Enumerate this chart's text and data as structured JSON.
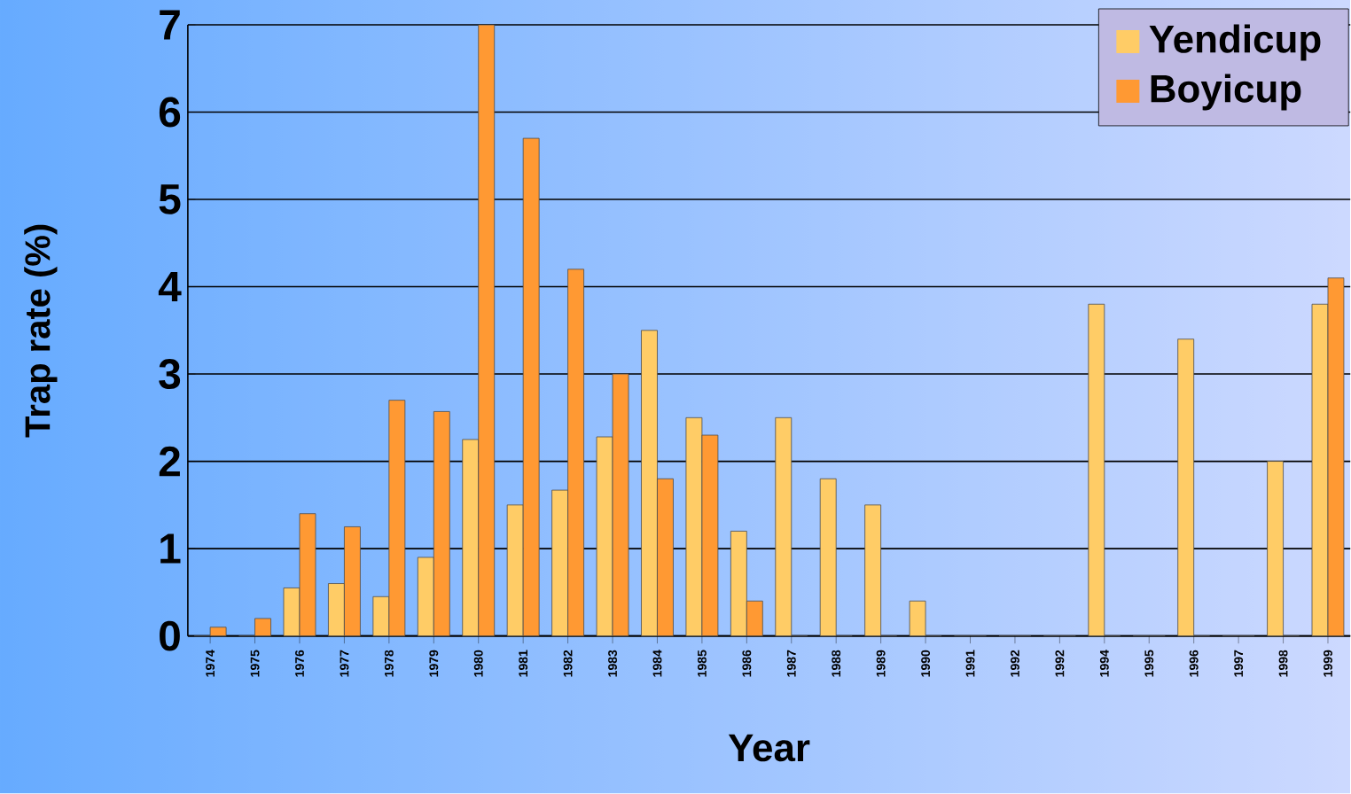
{
  "chart_data": {
    "type": "bar",
    "xlabel": "Year",
    "ylabel": "Trap rate (%)",
    "categories": [
      "1974",
      "1975",
      "1976",
      "1977",
      "1978",
      "1979",
      "1980",
      "1981",
      "1982",
      "1983",
      "1984",
      "1985",
      "1986",
      "1987",
      "1988",
      "1989",
      "1990",
      "1991",
      "1992",
      "1992",
      "1994",
      "1995",
      "1996",
      "1997",
      "1998",
      "1999"
    ],
    "series": [
      {
        "name": "Yendicup",
        "color": "#ffcc66",
        "values": [
          0,
          0,
          0.55,
          0.6,
          0.45,
          0.9,
          2.25,
          1.5,
          1.67,
          2.28,
          3.5,
          2.5,
          1.2,
          2.5,
          1.8,
          1.5,
          0.4,
          0,
          0,
          0,
          3.8,
          0,
          3.4,
          0,
          2.0,
          3.8
        ]
      },
      {
        "name": "Boyicup",
        "color": "#ff9933",
        "values": [
          0.1,
          0.2,
          1.4,
          1.25,
          2.7,
          2.57,
          7,
          5.7,
          4.2,
          3.0,
          1.8,
          2.3,
          0.4,
          0,
          0,
          0,
          0,
          0,
          0,
          0,
          0,
          0,
          0,
          0,
          0,
          4.1
        ]
      }
    ],
    "ylim": [
      0,
      7
    ],
    "yticks": [
      0,
      1,
      2,
      3,
      4,
      5,
      6,
      7
    ],
    "grid": "y",
    "legend": "top right"
  }
}
